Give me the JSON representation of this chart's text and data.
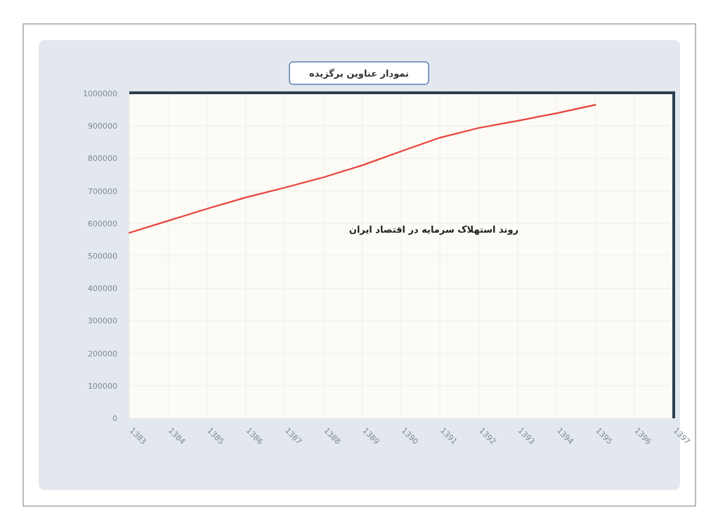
{
  "chart_data": {
    "type": "line",
    "title": "نمودار عناوین برگزیده",
    "annotations": [
      "روند استهلاک سرمایه در اقتصاد ایران"
    ],
    "categories": [
      "1383",
      "1384",
      "1385",
      "1386",
      "1387",
      "1388",
      "1389",
      "1390",
      "1391",
      "1392",
      "1393",
      "1394",
      "1395",
      "1396",
      "1397"
    ],
    "series": [
      {
        "color": "#e8413a",
        "values": [
          571000,
          608000,
          645000,
          680000,
          710000,
          742000,
          779000,
          822000,
          864000,
          894000,
          916000,
          939000,
          965000,
          null,
          null
        ]
      }
    ],
    "ylim": [
      0,
      1000000
    ],
    "yticks": [
      0,
      100000,
      200000,
      300000,
      400000,
      500000,
      600000,
      700000,
      800000,
      900000,
      1000000
    ],
    "grid": true
  }
}
